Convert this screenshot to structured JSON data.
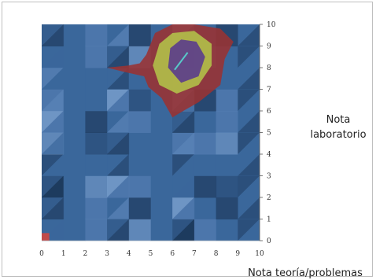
{
  "chart_data": {
    "type": "heatmap",
    "title": "",
    "xlabel": "Nota teoría/problemas",
    "ylabel": [
      "Nota",
      "laboratorio"
    ],
    "xlim": [
      0,
      10
    ],
    "ylim": [
      0,
      10
    ],
    "x_ticks": [
      "0",
      "1",
      "2",
      "3",
      "4",
      "5",
      "6",
      "7",
      "8",
      "9",
      "10"
    ],
    "y_ticks": [
      "0",
      "1",
      "2",
      "3",
      "4",
      "5",
      "6",
      "7",
      "8",
      "9",
      "10"
    ],
    "colors": {
      "base": "#3a679b",
      "base_light": "#5b84b8",
      "base_lighter": "#7ea3cf",
      "base_dark": "#25466e",
      "base_darkest": "#17304f",
      "red": "#9a3232",
      "yellow": "#b4c84a",
      "purple": "#5b3c8c",
      "cyan": "#58c8c8"
    },
    "contours": [
      {
        "level": "low",
        "color": "red",
        "points": [
          [
            4.8,
            8.6
          ],
          [
            5.2,
            9.6
          ],
          [
            6,
            10
          ],
          [
            7,
            10
          ],
          [
            8.2,
            9.8
          ],
          [
            8.8,
            9.2
          ],
          [
            8.4,
            8.4
          ],
          [
            8.2,
            7.2
          ],
          [
            7.2,
            6.4
          ],
          [
            6.5,
            6
          ],
          [
            6,
            5.7
          ],
          [
            5.5,
            6.6
          ],
          [
            4.9,
            7.1
          ],
          [
            4.7,
            7.6
          ],
          [
            3.8,
            7.8
          ],
          [
            3,
            8
          ],
          [
            4,
            8.1
          ],
          [
            4.5,
            8.2
          ]
        ]
      },
      {
        "level": "mid",
        "color": "yellow",
        "points": [
          [
            5.4,
            9.1
          ],
          [
            6,
            9.6
          ],
          [
            7,
            9.7
          ],
          [
            7.8,
            9.1
          ],
          [
            7.8,
            8.1
          ],
          [
            7.2,
            7.2
          ],
          [
            6.2,
            6.8
          ],
          [
            5.4,
            7.2
          ],
          [
            5.1,
            8.1
          ]
        ]
      },
      {
        "level": "high",
        "color": "purple",
        "points": [
          [
            5.9,
            8.9
          ],
          [
            6.4,
            9.3
          ],
          [
            7.1,
            9.2
          ],
          [
            7.5,
            8.5
          ],
          [
            7.2,
            7.6
          ],
          [
            6.4,
            7.3
          ],
          [
            5.8,
            8.0
          ]
        ]
      }
    ],
    "marker": {
      "x": 0,
      "y": 0
    }
  }
}
